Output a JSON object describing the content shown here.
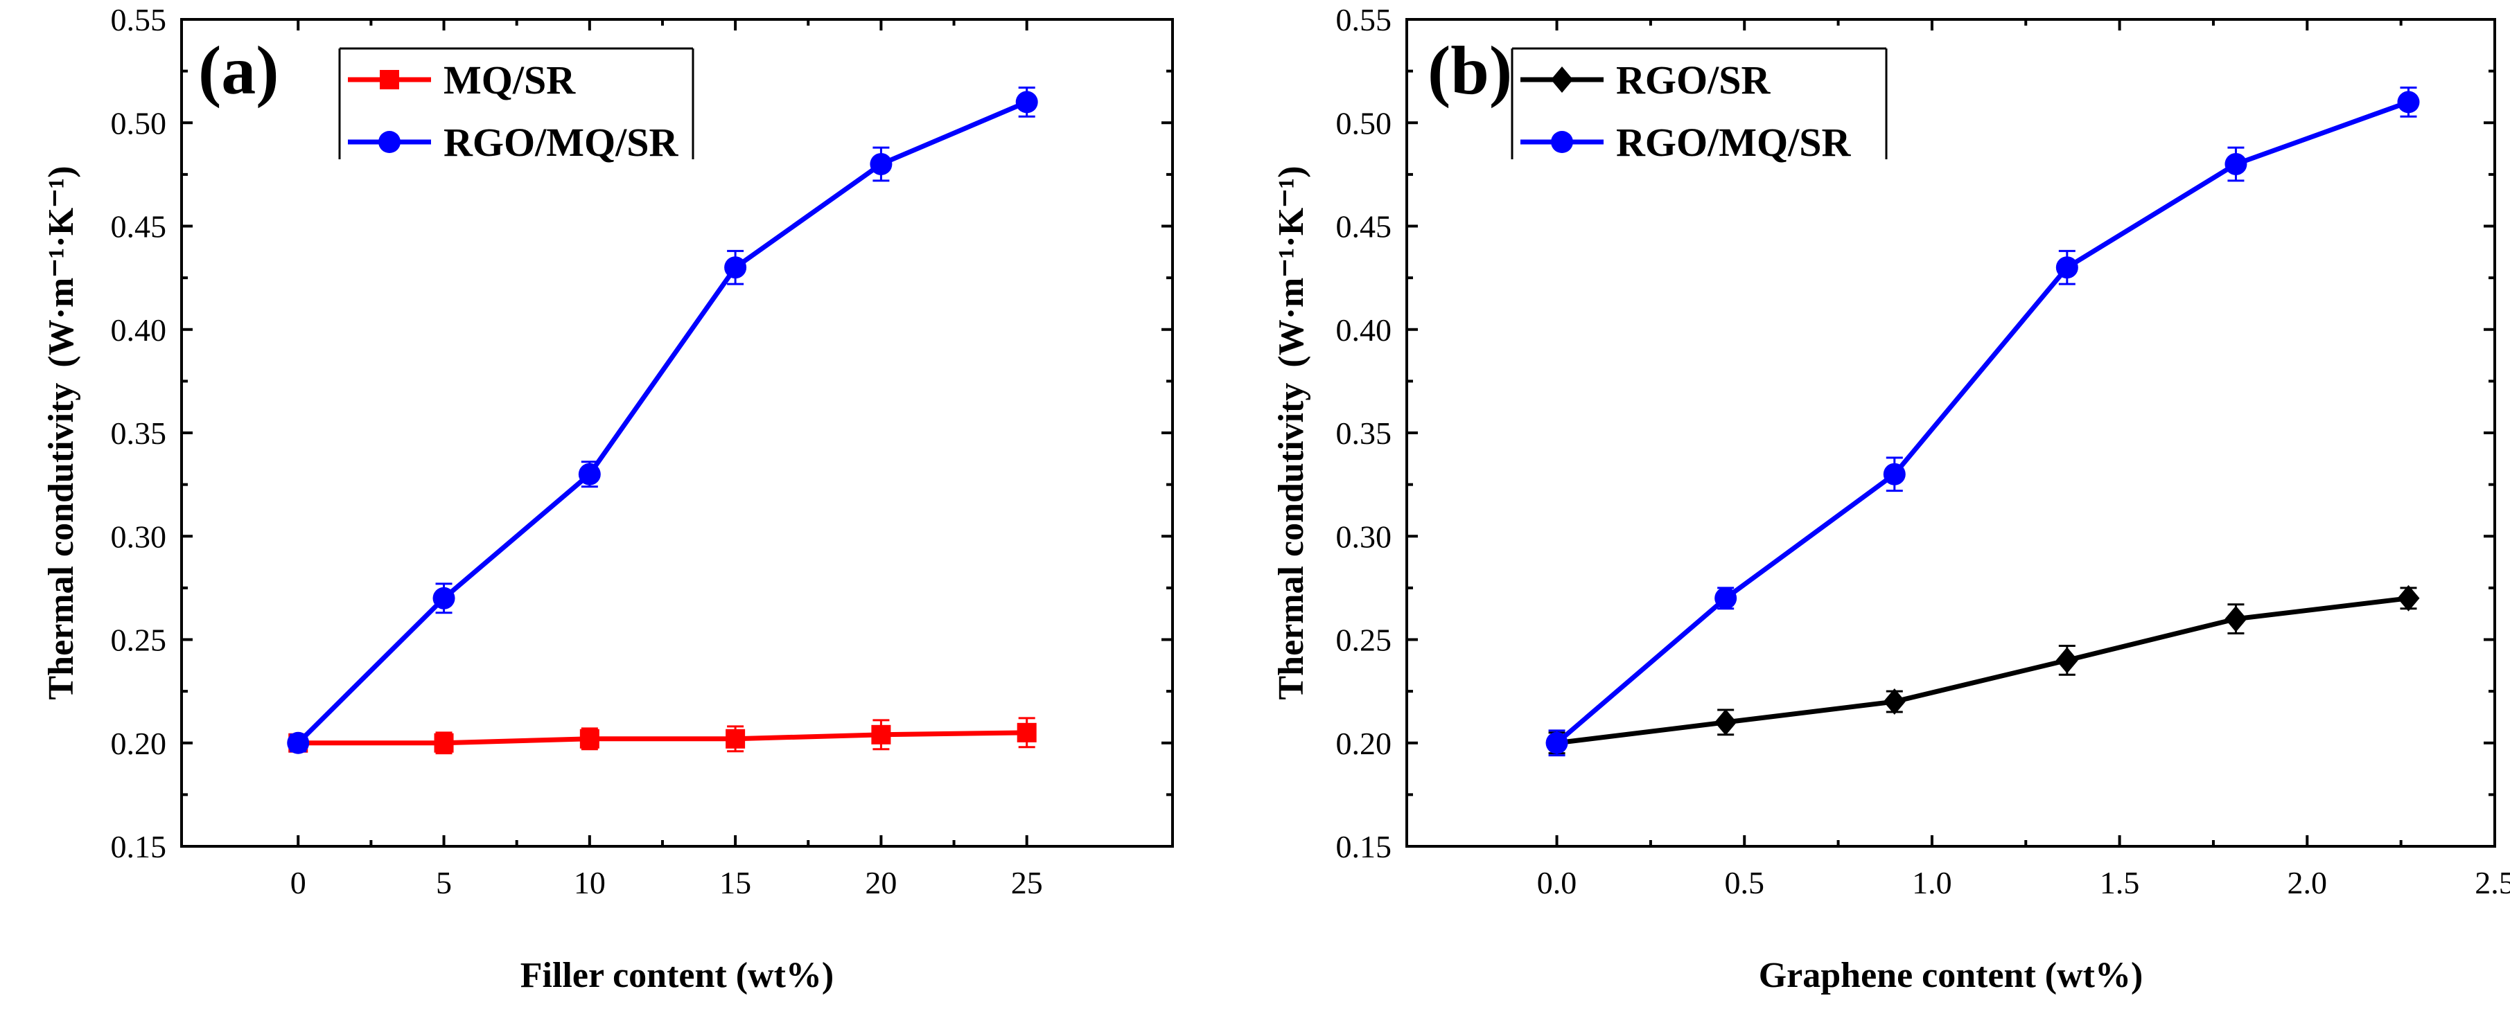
{
  "chart_data": [
    {
      "type": "line",
      "panel_label": "(a)",
      "xlabel": "Filler content (wt%)",
      "ylabel": "Thermal condutivity",
      "ylabel_unit": "(W·m⁻¹·K⁻¹)",
      "xlim": [
        -4,
        30
      ],
      "ylim": [
        0.15,
        0.55
      ],
      "xticks": [
        0,
        5,
        10,
        15,
        20,
        25
      ],
      "xtick_labels": [
        "0",
        "5",
        "10",
        "15",
        "20",
        "25"
      ],
      "yticks": [
        0.15,
        0.2,
        0.25,
        0.3,
        0.35,
        0.4,
        0.45,
        0.5,
        0.55
      ],
      "ytick_labels": [
        "0.15",
        "0.20",
        "0.25",
        "0.30",
        "0.35",
        "0.40",
        "0.45",
        "0.50",
        "0.55"
      ],
      "legend_position": "top-left",
      "series": [
        {
          "name": "MQ/SR",
          "color": "#ff0000",
          "marker": "square",
          "x": [
            0,
            5,
            10,
            15,
            20,
            25
          ],
          "values": [
            0.2,
            0.2,
            0.202,
            0.202,
            0.204,
            0.205
          ],
          "errors": [
            0.004,
            0.005,
            0.005,
            0.006,
            0.007,
            0.007
          ]
        },
        {
          "name": "RGO/MQ/SR",
          "color": "#0000ff",
          "marker": "circle",
          "x": [
            0,
            5,
            10,
            15,
            20,
            25
          ],
          "values": [
            0.2,
            0.27,
            0.33,
            0.43,
            0.48,
            0.51
          ],
          "errors": [
            0.004,
            0.007,
            0.006,
            0.008,
            0.008,
            0.007
          ]
        }
      ]
    },
    {
      "type": "line",
      "panel_label": "(b)",
      "xlabel": "Graphene content (wt%)",
      "ylabel": "Thermal condutivity",
      "ylabel_unit": "(W·m⁻¹·K⁻¹)",
      "xlim": [
        -0.4,
        2.5
      ],
      "ylim": [
        0.15,
        0.55
      ],
      "xticks": [
        0,
        0.5,
        1,
        1.5,
        2,
        2.5
      ],
      "xtick_labels": [
        "0.0",
        "0.5",
        "1.0",
        "1.5",
        "2.0",
        "2.5"
      ],
      "yticks": [
        0.15,
        0.2,
        0.25,
        0.3,
        0.35,
        0.4,
        0.45,
        0.5,
        0.55
      ],
      "ytick_labels": [
        "0.15",
        "0.20",
        "0.25",
        "0.30",
        "0.35",
        "0.40",
        "0.45",
        "0.50",
        "0.55"
      ],
      "legend_position": "top-left",
      "series": [
        {
          "name": "RGO/SR",
          "color": "#000000",
          "marker": "diamond",
          "x": [
            0,
            0.45,
            0.9,
            1.36,
            1.81,
            2.27
          ],
          "values": [
            0.2,
            0.21,
            0.22,
            0.24,
            0.26,
            0.27
          ],
          "errors": [
            0.005,
            0.006,
            0.005,
            0.007,
            0.007,
            0.005
          ]
        },
        {
          "name": "RGO/MQ/SR",
          "color": "#0000ff",
          "marker": "circle",
          "x": [
            0,
            0.45,
            0.9,
            1.36,
            1.81,
            2.27
          ],
          "values": [
            0.2,
            0.27,
            0.33,
            0.43,
            0.48,
            0.51
          ],
          "errors": [
            0.006,
            0.005,
            0.008,
            0.008,
            0.008,
            0.007
          ]
        }
      ]
    }
  ]
}
